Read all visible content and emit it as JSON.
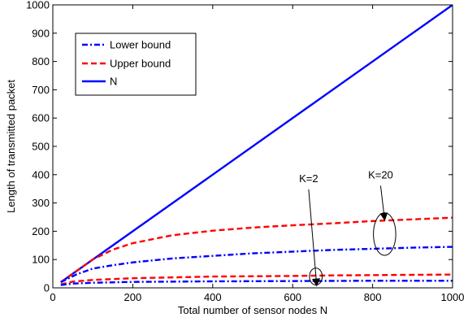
{
  "chart_data": {
    "type": "line",
    "title": "",
    "xlabel": "Total number of sensor nodes N",
    "ylabel": "Length of transmitted packet",
    "xlim": [
      0,
      1000
    ],
    "ylim": [
      0,
      1000
    ],
    "xticks": [
      0,
      200,
      400,
      600,
      800,
      1000
    ],
    "yticks": [
      0,
      100,
      200,
      300,
      400,
      500,
      600,
      700,
      800,
      900,
      1000
    ],
    "grid": false,
    "legend_position": "top-left",
    "legend": [
      {
        "label": "Lower bound",
        "color": "#0000ff",
        "style": "dashdot"
      },
      {
        "label": "Upper bound",
        "color": "#ff0000",
        "style": "dashed"
      },
      {
        "label": "N",
        "color": "#0000ff",
        "style": "solid"
      }
    ],
    "series": [
      {
        "name": "N",
        "color": "#0000ff",
        "style": "solid",
        "x": [
          20,
          1000
        ],
        "y": [
          20,
          1000
        ]
      },
      {
        "name": "Upper bound",
        "group": "K=20",
        "color": "#ff0000",
        "style": "dashed",
        "x": [
          20,
          60,
          100,
          150,
          200,
          300,
          400,
          500,
          600,
          700,
          800,
          900,
          1000
        ],
        "y": [
          20,
          60,
          100,
          135,
          158,
          186,
          202,
          213,
          221,
          228,
          236,
          242,
          248
        ]
      },
      {
        "name": "Lower bound",
        "group": "K=20",
        "color": "#0000ff",
        "style": "dashdot",
        "x": [
          20,
          60,
          100,
          150,
          200,
          300,
          400,
          500,
          600,
          700,
          800,
          900,
          1000
        ],
        "y": [
          20,
          48,
          68,
          80,
          90,
          104,
          113,
          122,
          128,
          134,
          138,
          142,
          145
        ]
      },
      {
        "name": "Upper bound",
        "group": "K=2",
        "color": "#ff0000",
        "style": "dashed",
        "x": [
          20,
          50,
          100,
          200,
          300,
          400,
          500,
          600,
          700,
          800,
          900,
          1000
        ],
        "y": [
          12,
          22,
          28,
          34,
          37,
          40,
          41,
          42,
          44,
          45,
          46,
          47
        ]
      },
      {
        "name": "Lower bound",
        "group": "K=2",
        "color": "#0000ff",
        "style": "dashdot",
        "x": [
          20,
          50,
          100,
          200,
          400,
          600,
          800,
          1000
        ],
        "y": [
          10,
          15,
          18,
          21,
          23,
          24,
          25,
          25
        ]
      }
    ],
    "annotations": [
      {
        "text": "K=2",
        "label_at": [
          640,
          365
        ],
        "arrow_to": [
          660,
          10
        ],
        "ellipse_center": [
          658,
          40
        ],
        "ellipse_rx": 16,
        "ellipse_ry": 30
      },
      {
        "text": "K=20",
        "label_at": [
          820,
          378
        ],
        "arrow_to": [
          830,
          242
        ],
        "ellipse_center": [
          830,
          190
        ],
        "ellipse_rx": 28,
        "ellipse_ry": 75
      }
    ]
  }
}
